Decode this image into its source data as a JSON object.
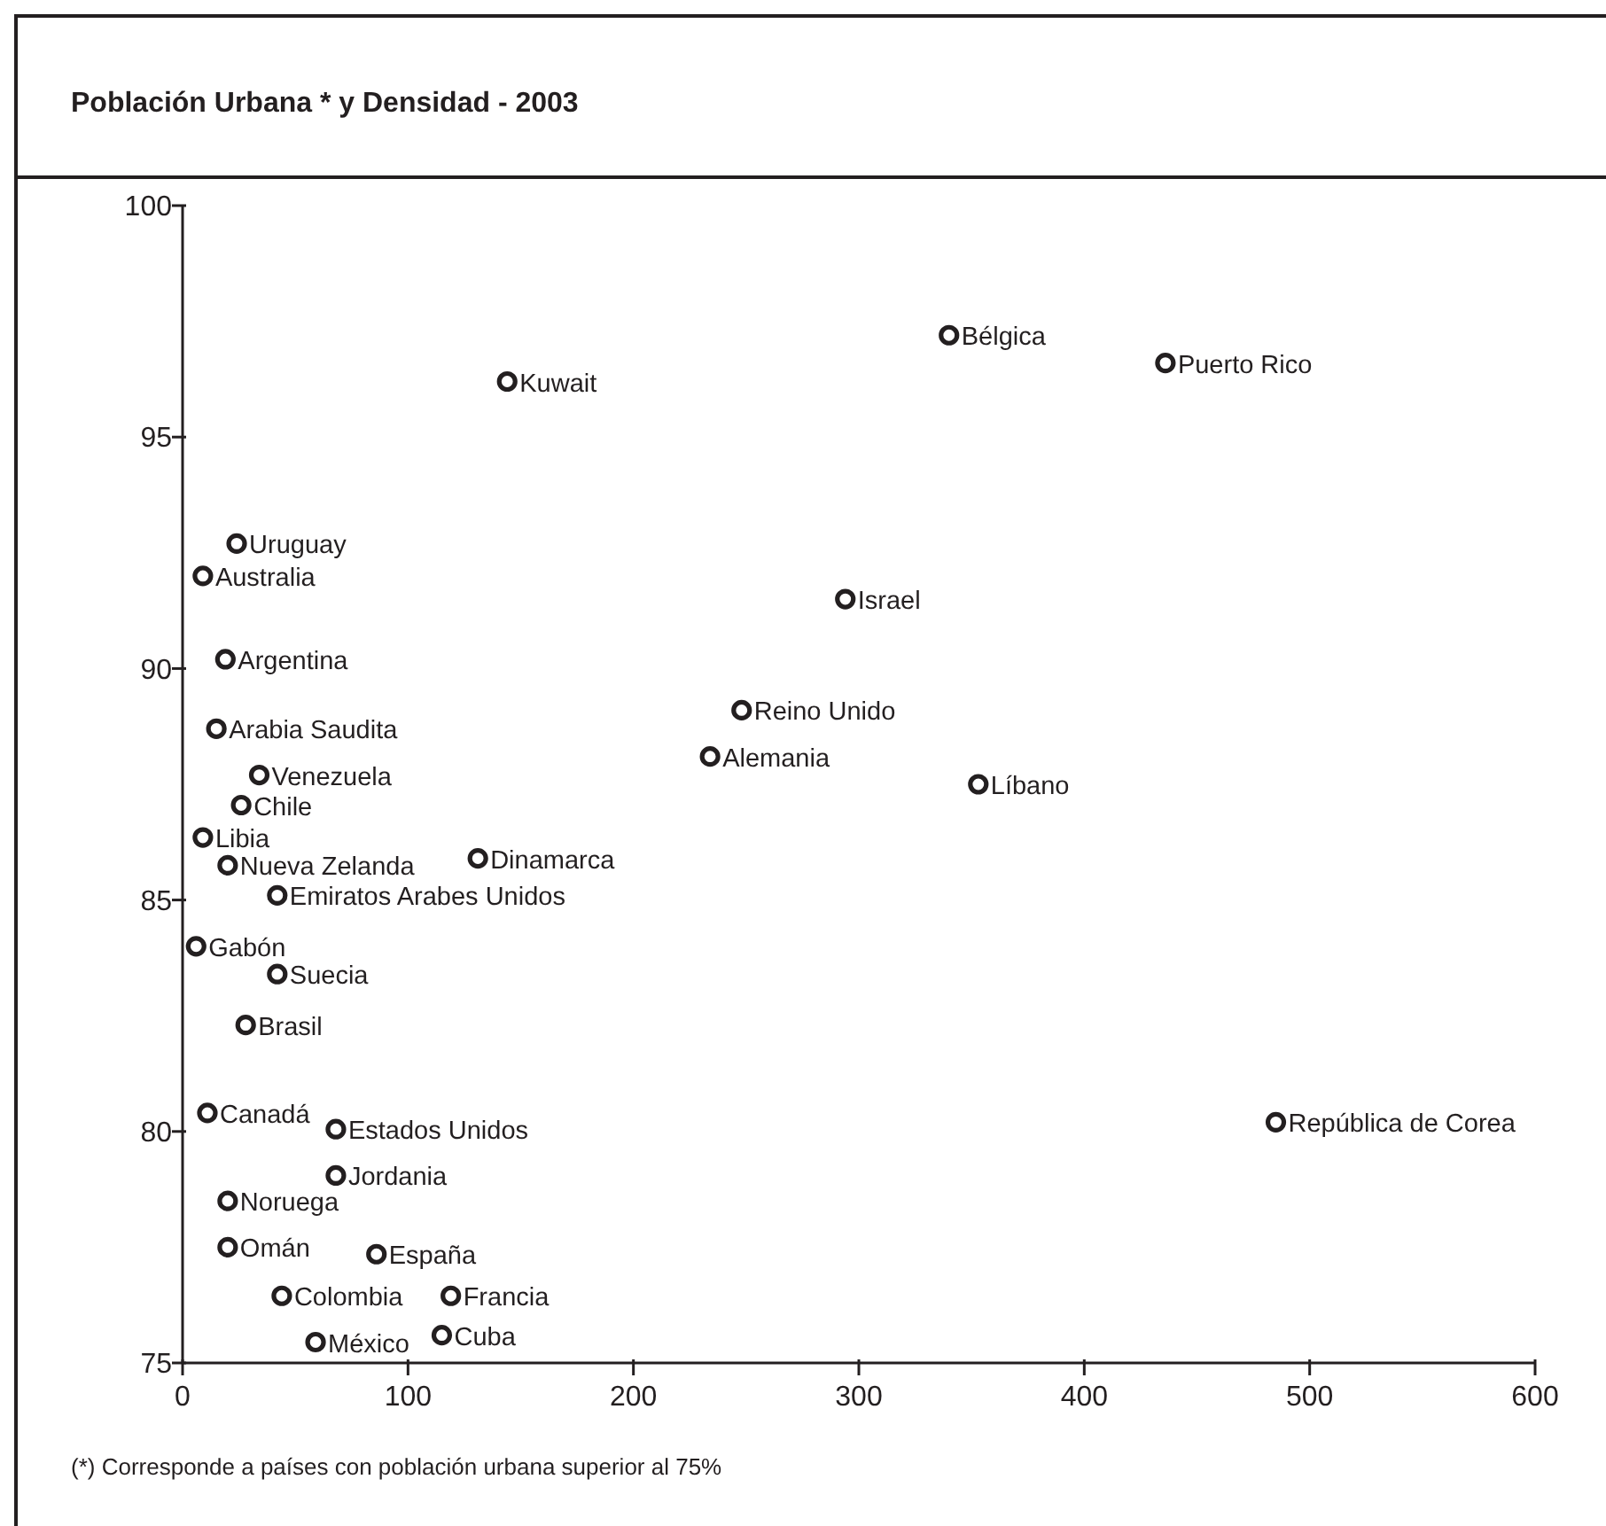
{
  "chart_data": {
    "type": "scatter",
    "title": "Población Urbana * y Densidad - 2003",
    "x": [
      144,
      340,
      436,
      24,
      9,
      294,
      19,
      15,
      248,
      234,
      353,
      34,
      26,
      9,
      20,
      131,
      42,
      6,
      42,
      28,
      11,
      68,
      68,
      20,
      20,
      86,
      44,
      119,
      59,
      115,
      485
    ],
    "values": [
      96.2,
      97.2,
      96.6,
      92.7,
      92.0,
      91.5,
      90.2,
      88.7,
      89.1,
      88.1,
      87.5,
      87.7,
      87.05,
      86.35,
      85.75,
      85.9,
      85.1,
      84.0,
      83.4,
      82.3,
      80.4,
      80.05,
      79.05,
      78.5,
      77.5,
      77.35,
      76.45,
      76.45,
      75.45,
      75.6,
      80.2
    ],
    "color": "#231f20",
    "marker": "circle",
    "grid": false,
    "xlim": [
      0,
      600
    ],
    "xticks": [
      0,
      100,
      200,
      300,
      400,
      500,
      600
    ],
    "ylim": [
      75,
      100
    ],
    "yticks": [
      75,
      80,
      85,
      90,
      95,
      100
    ],
    "annotations": [
      {
        "text": "Kuwait",
        "x": 144,
        "y": 96.2
      },
      {
        "text": "Bélgica",
        "x": 340,
        "y": 97.2
      },
      {
        "text": "Puerto Rico",
        "x": 436,
        "y": 96.6
      },
      {
        "text": "Uruguay",
        "x": 24,
        "y": 92.7
      },
      {
        "text": "Australia",
        "x": 9,
        "y": 92.0
      },
      {
        "text": "Israel",
        "x": 294,
        "y": 91.5
      },
      {
        "text": "Argentina",
        "x": 19,
        "y": 90.2
      },
      {
        "text": "Arabia Saudita",
        "x": 15,
        "y": 88.7
      },
      {
        "text": "Reino Unido",
        "x": 248,
        "y": 89.1
      },
      {
        "text": "Alemania",
        "x": 234,
        "y": 88.1
      },
      {
        "text": "Líbano",
        "x": 353,
        "y": 87.5
      },
      {
        "text": "Venezuela",
        "x": 34,
        "y": 87.7
      },
      {
        "text": "Chile",
        "x": 26,
        "y": 87.05
      },
      {
        "text": "Libia",
        "x": 9,
        "y": 86.35
      },
      {
        "text": "Nueva Zelanda",
        "x": 20,
        "y": 85.75
      },
      {
        "text": "Dinamarca",
        "x": 131,
        "y": 85.9
      },
      {
        "text": "Emiratos Arabes Unidos",
        "x": 42,
        "y": 85.1
      },
      {
        "text": "Gabón",
        "x": 6,
        "y": 84.0
      },
      {
        "text": "Suecia",
        "x": 42,
        "y": 83.4
      },
      {
        "text": "Brasil",
        "x": 28,
        "y": 82.3
      },
      {
        "text": "Canadá",
        "x": 11,
        "y": 80.4
      },
      {
        "text": "Estados Unidos",
        "x": 68,
        "y": 80.05
      },
      {
        "text": "Jordania",
        "x": 68,
        "y": 79.05
      },
      {
        "text": "Noruega",
        "x": 20,
        "y": 78.5
      },
      {
        "text": "Omán",
        "x": 20,
        "y": 77.5
      },
      {
        "text": "España",
        "x": 86,
        "y": 77.35
      },
      {
        "text": "Colombia",
        "x": 44,
        "y": 76.45
      },
      {
        "text": "Francia",
        "x": 119,
        "y": 76.45
      },
      {
        "text": "México",
        "x": 59,
        "y": 75.45
      },
      {
        "text": "Cuba",
        "x": 115,
        "y": 75.6
      },
      {
        "text": "República de Corea",
        "x": 485,
        "y": 80.2
      },
      "(*) Corresponde a países con población urbana superior al 75%"
    ]
  }
}
